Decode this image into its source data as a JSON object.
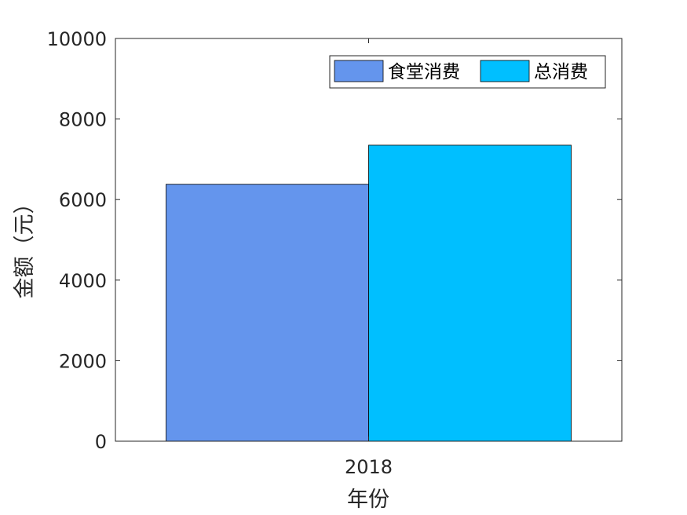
{
  "chart_data": {
    "type": "bar",
    "categories": [
      "2018"
    ],
    "series": [
      {
        "name": "食堂消费",
        "values": [
          6380
        ],
        "color": "#6495ED"
      },
      {
        "name": "总消费",
        "values": [
          7350
        ],
        "color": "#00BFFF"
      }
    ],
    "xlabel": "年份",
    "ylabel": "金额（元）",
    "ylim": [
      0,
      10000
    ],
    "yticks": [
      "0",
      "2000",
      "4000",
      "6000",
      "8000",
      "10000"
    ],
    "legend_position": "top-right",
    "grid": false
  }
}
